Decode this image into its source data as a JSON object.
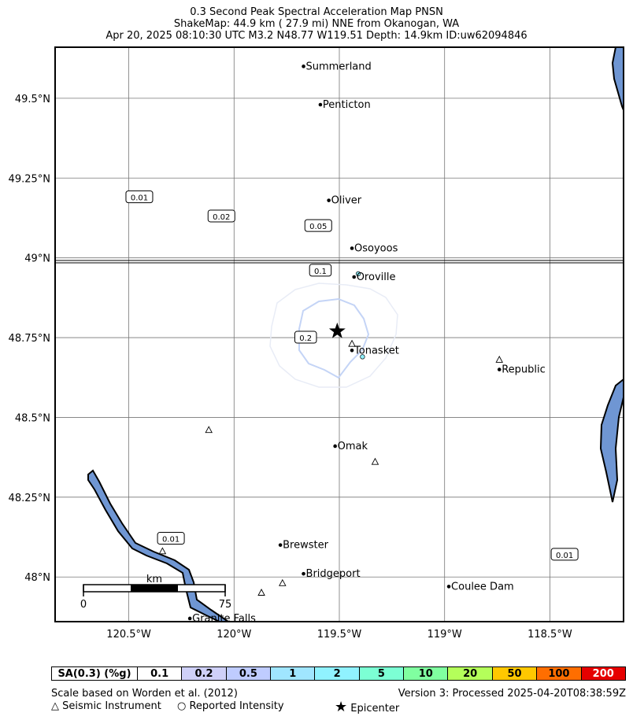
{
  "header": {
    "line1": "0.3 Second Peak Spectral Acceleration Map PNSN",
    "line2": "ShakeMap: 44.9 km (  27.9 mi) NNE from Okanogan, WA",
    "line3": "Apr 20, 2025 08:10:30 UTC M3.2 N48.77 W119.51 Depth: 14.9km ID:uw62094846"
  },
  "map": {
    "lon_range": [
      -120.85,
      -118.15
    ],
    "lat_range": [
      47.86,
      49.66
    ],
    "x_ticks": [
      "120.5°W",
      "120°W",
      "119.5°W",
      "119°W",
      "118.5°W"
    ],
    "x_tick_values": [
      -120.5,
      -120.0,
      -119.5,
      -119.0,
      -118.5
    ],
    "y_ticks": [
      "49.5°N",
      "49.25°N",
      "49°N",
      "48.75°N",
      "48.5°N",
      "48.25°N",
      "48°N"
    ],
    "y_tick_values": [
      49.5,
      49.25,
      49.0,
      48.75,
      48.5,
      48.25,
      48.0
    ],
    "water_color": "#6f96d3",
    "cities": [
      {
        "name": "Summerland",
        "lon": -119.67,
        "lat": 49.6
      },
      {
        "name": "Penticton",
        "lon": -119.59,
        "lat": 49.48
      },
      {
        "name": "Oliver",
        "lon": -119.55,
        "lat": 49.18
      },
      {
        "name": "Osoyoos",
        "lon": -119.44,
        "lat": 49.03
      },
      {
        "name": "Oroville",
        "lon": -119.43,
        "lat": 48.94
      },
      {
        "name": "Tonasket",
        "lon": -119.44,
        "lat": 48.71
      },
      {
        "name": "Republic",
        "lon": -118.74,
        "lat": 48.65
      },
      {
        "name": "Omak",
        "lon": -119.52,
        "lat": 48.41
      },
      {
        "name": "Brewster",
        "lon": -119.78,
        "lat": 48.1
      },
      {
        "name": "Bridgeport",
        "lon": -119.67,
        "lat": 48.01
      },
      {
        "name": "Coulee Dam",
        "lon": -118.98,
        "lat": 47.97
      },
      {
        "name": "Granite Falls",
        "lon": -120.21,
        "lat": 47.87
      }
    ],
    "contour_labels": [
      {
        "text": "0.01",
        "lon": -120.45,
        "lat": 49.19
      },
      {
        "text": "0.02",
        "lon": -120.06,
        "lat": 49.13
      },
      {
        "text": "0.05",
        "lon": -119.6,
        "lat": 49.1
      },
      {
        "text": "0.1",
        "lon": -119.59,
        "lat": 48.96
      },
      {
        "text": "0.2",
        "lon": -119.66,
        "lat": 48.75
      },
      {
        "text": "0.01",
        "lon": -120.3,
        "lat": 48.12
      },
      {
        "text": "0.01",
        "lon": -118.43,
        "lat": 48.07
      }
    ],
    "stations": [
      {
        "lon": -119.44,
        "lat": 48.73
      },
      {
        "lon": -118.74,
        "lat": 48.68
      },
      {
        "lon": -120.12,
        "lat": 48.46
      },
      {
        "lon": -119.33,
        "lat": 48.36
      },
      {
        "lon": -120.34,
        "lat": 48.08
      },
      {
        "lon": -119.77,
        "lat": 47.98
      },
      {
        "lon": -119.87,
        "lat": 47.95
      }
    ],
    "intensity_points": [
      {
        "lon": -119.39,
        "lat": 48.69
      },
      {
        "lon": -119.41,
        "lat": 48.95
      }
    ],
    "epicenter": {
      "lon": -119.51,
      "lat": 48.77
    },
    "scale_bar": {
      "unit": "km",
      "start": "0",
      "end": "75"
    }
  },
  "legend": {
    "title": "SA(0.3) (%g)",
    "bins": [
      {
        "label": "0.1",
        "color": "#ffffff"
      },
      {
        "label": "0.2",
        "color": "#cfd0f8"
      },
      {
        "label": "0.5",
        "color": "#bfccff"
      },
      {
        "label": "1",
        "color": "#a0e6ff"
      },
      {
        "label": "2",
        "color": "#90f2ff"
      },
      {
        "label": "5",
        "color": "#7cffd4"
      },
      {
        "label": "10",
        "color": "#80ffa0"
      },
      {
        "label": "20",
        "color": "#b4ff5a"
      },
      {
        "label": "50",
        "color": "#ffc800"
      },
      {
        "label": "100",
        "color": "#ff6e00"
      },
      {
        "label": "200",
        "color": "#e60000"
      }
    ]
  },
  "footer": {
    "scale_note": "Scale based on Worden et al. (2012)",
    "version": "Version 3: Processed 2025-04-20T08:38:59Z",
    "legend_station": "Seismic Instrument",
    "legend_intensity": "Reported Intensity",
    "legend_epicenter": "Epicenter"
  }
}
